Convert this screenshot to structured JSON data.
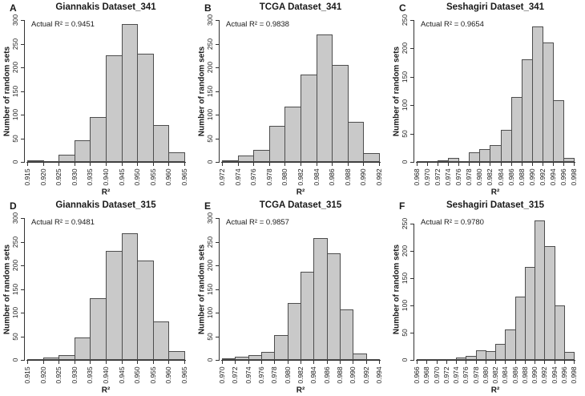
{
  "figure": {
    "xlabel": "R²",
    "ylabel": "Number of random sets",
    "colors": {
      "background": "#ffffff",
      "bar_fill": "#c9c9c9",
      "bar_border": "#4d4d4d",
      "axis": "#333333",
      "text": "#1a1a1a"
    }
  },
  "chart_data": [
    {
      "type": "bar",
      "subtype": "histogram",
      "panel_label": "A",
      "title": "Giannakis Dataset_341",
      "annotation": "Actual R² = 0.9451",
      "xlabel": "R²",
      "ylabel": "Number of random sets",
      "bin_labels": [
        "0.915",
        "0.920",
        "0.925",
        "0.930",
        "0.935",
        "0.940",
        "0.945",
        "0.950",
        "0.955",
        "0.960",
        "0.965"
      ],
      "counts": [
        3,
        2,
        15,
        46,
        95,
        225,
        292,
        228,
        78,
        20
      ],
      "y_ticks": [
        0,
        50,
        100,
        150,
        200,
        250,
        300
      ],
      "ylim": [
        0,
        300
      ],
      "grid": false,
      "legend": "none"
    },
    {
      "type": "bar",
      "subtype": "histogram",
      "panel_label": "B",
      "title": "TCGA Dataset_341",
      "annotation": "Actual R² = 0.9838",
      "xlabel": "R²",
      "ylabel": "Number of random sets",
      "bin_labels": [
        "0.972",
        "0.974",
        "0.976",
        "0.978",
        "0.980",
        "0.982",
        "0.984",
        "0.986",
        "0.988",
        "0.990",
        "0.992"
      ],
      "counts": [
        4,
        13,
        25,
        77,
        117,
        185,
        270,
        205,
        85,
        18
      ],
      "y_ticks": [
        0,
        50,
        100,
        150,
        200,
        250,
        300
      ],
      "ylim": [
        0,
        300
      ],
      "grid": false,
      "legend": "none"
    },
    {
      "type": "bar",
      "subtype": "histogram",
      "panel_label": "C",
      "title": "Seshagiri Dataset_341",
      "annotation": "Actual R² = 0.9654",
      "xlabel": "R²",
      "ylabel": "Number of random sets",
      "bin_labels": [
        "0.968",
        "0.970",
        "0.972",
        "0.974",
        "0.976",
        "0.978",
        "0.980",
        "0.982",
        "0.984",
        "0.986",
        "0.988",
        "0.990",
        "0.992",
        "0.994",
        "0.996",
        "0.998"
      ],
      "counts": [
        2,
        2,
        3,
        7,
        2,
        17,
        23,
        30,
        57,
        114,
        181,
        239,
        210,
        109,
        7
      ],
      "y_ticks": [
        0,
        50,
        100,
        150,
        200,
        250
      ],
      "ylim": [
        0,
        250
      ],
      "grid": false,
      "legend": "none"
    },
    {
      "type": "bar",
      "subtype": "histogram",
      "panel_label": "D",
      "title": "Giannakis Dataset_315",
      "annotation": "Actual R² = 0.9481",
      "xlabel": "R²",
      "ylabel": "Number of random sets",
      "bin_labels": [
        "0.915",
        "0.920",
        "0.925",
        "0.930",
        "0.935",
        "0.940",
        "0.945",
        "0.950",
        "0.955",
        "0.960",
        "0.965"
      ],
      "counts": [
        2,
        5,
        10,
        47,
        130,
        230,
        268,
        211,
        82,
        18
      ],
      "y_ticks": [
        0,
        50,
        100,
        150,
        200,
        250,
        300
      ],
      "ylim": [
        0,
        300
      ],
      "grid": false,
      "legend": "none"
    },
    {
      "type": "bar",
      "subtype": "histogram",
      "panel_label": "E",
      "title": "TCGA Dataset_315",
      "annotation": "Actual R² = 0.9857",
      "xlabel": "R²",
      "ylabel": "Number of random sets",
      "bin_labels": [
        "0.970",
        "0.972",
        "0.974",
        "0.976",
        "0.978",
        "0.980",
        "0.982",
        "0.984",
        "0.986",
        "0.988",
        "0.990",
        "0.992",
        "0.994"
      ],
      "counts": [
        4,
        6,
        11,
        17,
        52,
        121,
        187,
        257,
        225,
        107,
        14,
        2
      ],
      "y_ticks": [
        0,
        50,
        100,
        150,
        200,
        250,
        300
      ],
      "ylim": [
        0,
        300
      ],
      "grid": false,
      "legend": "none"
    },
    {
      "type": "bar",
      "subtype": "histogram",
      "panel_label": "F",
      "title": "Seshagiri Dataset_315",
      "annotation": "Actual R² = 0.9780",
      "xlabel": "R²",
      "ylabel": "Number of random sets",
      "bin_labels": [
        "0.966",
        "0.968",
        "0.970",
        "0.972",
        "0.974",
        "0.976",
        "0.978",
        "0.980",
        "0.982",
        "0.984",
        "0.986",
        "0.988",
        "0.990",
        "0.992",
        "0.994",
        "0.996",
        "0.998"
      ],
      "counts": [
        2,
        1,
        1,
        2,
        5,
        7,
        18,
        16,
        30,
        56,
        116,
        171,
        255,
        209,
        100,
        15
      ],
      "y_ticks": [
        0,
        50,
        100,
        150,
        200,
        250
      ],
      "ylim": [
        0,
        260
      ],
      "grid": false,
      "legend": "none"
    }
  ]
}
